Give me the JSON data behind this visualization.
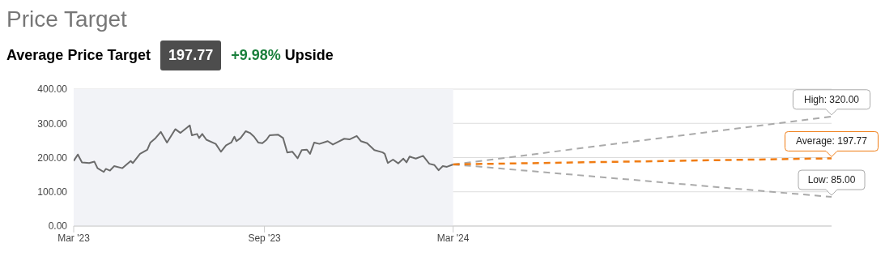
{
  "chart_data": {
    "type": "line",
    "title": "Price Target",
    "subtitle": "Average Price Target",
    "annotations": [
      "197.77",
      "+9.98%",
      "Upside",
      {
        "text": "High: 320.00",
        "x": "2025-03-01",
        "y": 320
      },
      {
        "text": "Average: 197.77",
        "x": "2025-03-01",
        "y": 197.77
      },
      {
        "text": "Low: 85.00",
        "x": "2025-03-01",
        "y": 85
      }
    ],
    "series": [
      {
        "color": "#6b6b6b",
        "line_style": "solid",
        "x": [
          "2023-03-01",
          "2023-03-05",
          "2023-03-09",
          "2023-03-16",
          "2023-03-21",
          "2023-03-24",
          "2023-03-30",
          "2023-04-01",
          "2023-04-05",
          "2023-04-09",
          "2023-04-17",
          "2023-04-25",
          "2023-04-27",
          "2023-05-04",
          "2023-05-11",
          "2023-05-14",
          "2023-05-19",
          "2023-05-24",
          "2023-05-30",
          "2023-06-07",
          "2023-06-12",
          "2023-06-21",
          "2023-06-23",
          "2023-06-28",
          "2023-06-30",
          "2023-07-03",
          "2023-07-07",
          "2023-07-16",
          "2023-07-21",
          "2023-07-26",
          "2023-07-31",
          "2023-08-03",
          "2023-08-05",
          "2023-08-09",
          "2023-08-14",
          "2023-08-18",
          "2023-08-22",
          "2023-08-26",
          "2023-08-30",
          "2023-09-03",
          "2023-09-06",
          "2023-09-14",
          "2023-09-19",
          "2023-09-23",
          "2023-09-28",
          "2023-10-03",
          "2023-10-07",
          "2023-10-12",
          "2023-10-15",
          "2023-10-19",
          "2023-10-24",
          "2023-11-01",
          "2023-11-06",
          "2023-11-11",
          "2023-11-17",
          "2023-11-22",
          "2023-11-29",
          "2023-12-03",
          "2023-12-09",
          "2023-12-16",
          "2023-12-24",
          "2023-12-26",
          "2023-12-29",
          "2024-01-03",
          "2024-01-08",
          "2024-01-13",
          "2024-01-16",
          "2024-01-19",
          "2024-01-25",
          "2024-02-01",
          "2024-02-07",
          "2024-02-12",
          "2024-02-16",
          "2024-02-20",
          "2024-02-24",
          "2024-03-01"
        ],
        "values": [
          190,
          209,
          186,
          184,
          188,
          169,
          158,
          167,
          162,
          175,
          169,
          190,
          184,
          211,
          223,
          244,
          257,
          275,
          244,
          283,
          272,
          294,
          265,
          269,
          257,
          269,
          252,
          240,
          217,
          236,
          244,
          261,
          248,
          257,
          277,
          272,
          261,
          244,
          242,
          252,
          265,
          267,
          257,
          215,
          217,
          198,
          222,
          223,
          211,
          244,
          240,
          248,
          238,
          246,
          255,
          253,
          263,
          248,
          242,
          222,
          215,
          211,
          184,
          194,
          183,
          197,
          186,
          203,
          197,
          205,
          182,
          178,
          163,
          175,
          173,
          180
        ]
      },
      {
        "color": "#aaaaaa",
        "line_style": "dashed",
        "x": [
          "2024-03-01",
          "2025-03-01"
        ],
        "values": [
          180,
          320
        ]
      },
      {
        "color": "#aaaaaa",
        "line_style": "dashed",
        "x": [
          "2024-03-01",
          "2025-03-01"
        ],
        "values": [
          180,
          85
        ]
      },
      {
        "color": "#f07c13",
        "line_style": "dashed",
        "x": [
          "2024-03-01",
          "2025-03-01"
        ],
        "values": [
          180,
          197.77
        ]
      }
    ],
    "xlim": [
      "2023-03-01",
      "2025-03-01"
    ],
    "xticks": [
      {
        "value": "2023-03-01",
        "label": "Mar '23"
      },
      {
        "value": "2023-09-01",
        "label": "Sep '23"
      },
      {
        "value": "2024-03-01",
        "label": "Mar '24"
      }
    ],
    "ylim": [
      0,
      400
    ],
    "yticks": [
      {
        "value": 0,
        "label": "0.00"
      },
      {
        "value": 100,
        "label": "100.00"
      },
      {
        "value": 200,
        "label": "200.00"
      },
      {
        "value": 300,
        "label": "300.00"
      },
      {
        "value": 400,
        "label": "400.00"
      }
    ],
    "bands": [
      {
        "axis": "x",
        "from": "2023-03-01",
        "to": "2024-03-01",
        "color": "#f2f3f7"
      }
    ],
    "grid": "y",
    "marker": "none"
  }
}
